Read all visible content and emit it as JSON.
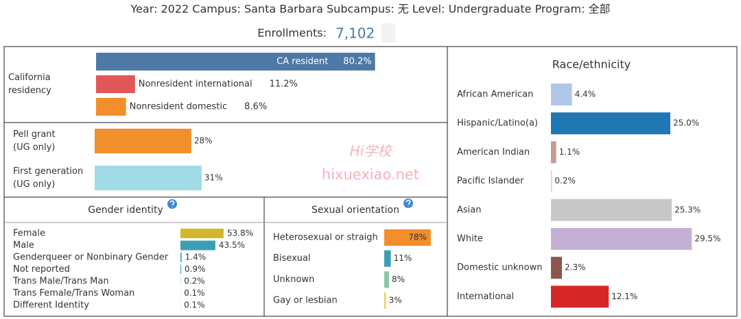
{
  "header": {
    "filters": "Year: 2022  Campus: Santa Barbara  Subcampus: 无  Level: Undergraduate  Program: 全部",
    "enrollments_label": "Enrollments:",
    "enrollments_value": "7,102"
  },
  "watermark": {
    "logo": "Hi学校",
    "site": "hixuexiao.net"
  },
  "chart_data": [
    {
      "type": "bar",
      "orientation": "horizontal",
      "title": "California\nresidency",
      "categories": [
        "CA resident",
        "Nonresident international",
        "Nonresident domestic"
      ],
      "values": [
        80.2,
        11.2,
        8.6
      ],
      "value_labels": [
        "80.2%",
        "11.2%",
        "8.6%"
      ],
      "colors": [
        "#4e79a7",
        "#e15759",
        "#f28e2b"
      ]
    },
    {
      "type": "bar",
      "orientation": "horizontal",
      "categories": [
        "Pell grant\n(UG only)",
        "First generation\n(UG only)"
      ],
      "values": [
        28,
        31
      ],
      "value_labels": [
        "28%",
        "31%"
      ],
      "colors": [
        "#f28e2b",
        "#a0dbe6"
      ]
    },
    {
      "type": "bar",
      "orientation": "horizontal",
      "title": "Gender identity",
      "categories": [
        "Female",
        "Male",
        "Genderqueer or Nonbinary Gender",
        "Not reported",
        "Trans Male/Trans Man",
        "Trans Female/Trans Woman",
        "Different Identity"
      ],
      "values": [
        53.8,
        43.5,
        1.4,
        0.9,
        0.2,
        0.1,
        0.1
      ],
      "value_labels": [
        "53.8%",
        "43.5%",
        "1.4%",
        "0.9%",
        "0.2%",
        "0.1%",
        "0.1%"
      ],
      "colors": [
        "#d4b62e",
        "#3a9fb5",
        "#3a9fb5",
        "#3a9fb5",
        "#3a9fb5",
        "#3a9fb5",
        "#3a9fb5"
      ]
    },
    {
      "type": "bar",
      "orientation": "horizontal",
      "title": "Sexual orientation",
      "categories": [
        "Heterosexual or straigh",
        "Bisexual",
        "Unknown",
        "Gay or lesbian"
      ],
      "values": [
        78,
        11,
        8,
        3
      ],
      "value_labels": [
        "78%",
        "11%",
        "8%",
        "3%"
      ],
      "colors": [
        "#f28e2b",
        "#3a9fb5",
        "#8cc5a8",
        "#f1ce63"
      ]
    },
    {
      "type": "bar",
      "orientation": "horizontal",
      "title": "Race/ethnicity",
      "categories": [
        "African American",
        "Hispanic/Latino(a)",
        "American Indian",
        "Pacific Islander",
        "Asian",
        "White",
        "Domestic unknown",
        "International"
      ],
      "values": [
        4.4,
        25.0,
        1.1,
        0.2,
        25.3,
        29.5,
        2.3,
        12.1
      ],
      "value_labels": [
        "4.4%",
        "25.0%",
        "1.1%",
        "0.2%",
        "25.3%",
        "29.5%",
        "2.3%",
        "12.1%"
      ],
      "colors": [
        "#aec7e8",
        "#1f77b4",
        "#c49c94",
        "#f7b6d2",
        "#c7c7c7",
        "#c5b0d5",
        "#8c564b",
        "#d62728"
      ]
    }
  ]
}
